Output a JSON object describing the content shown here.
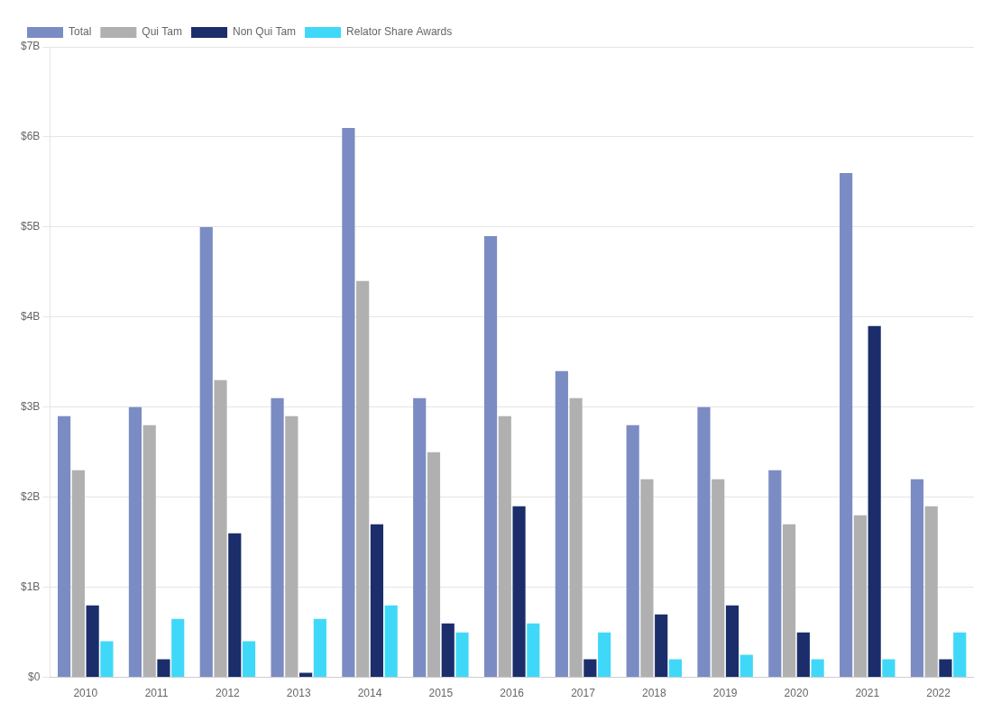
{
  "chart_data": {
    "type": "bar",
    "categories": [
      "2010",
      "2011",
      "2012",
      "2013",
      "2014",
      "2015",
      "2016",
      "2017",
      "2018",
      "2019",
      "2020",
      "2021",
      "2022"
    ],
    "series": [
      {
        "name": "Total",
        "color": "#7B8CC4",
        "values": [
          2.9,
          3.0,
          5.0,
          3.1,
          6.1,
          3.1,
          4.9,
          3.4,
          2.8,
          3.0,
          2.3,
          5.6,
          2.2
        ]
      },
      {
        "name": "Qui Tam",
        "color": "#B0B0B0",
        "values": [
          2.3,
          2.8,
          3.3,
          2.9,
          4.4,
          2.5,
          2.9,
          3.1,
          2.2,
          2.2,
          1.7,
          1.8,
          1.9
        ]
      },
      {
        "name": "Non Qui Tam",
        "color": "#1B2E6B",
        "values": [
          0.8,
          0.2,
          1.6,
          0.05,
          1.7,
          0.6,
          1.9,
          0.2,
          0.7,
          0.8,
          0.5,
          3.9,
          0.2
        ]
      },
      {
        "name": "Relator Share Awards",
        "color": "#40D8F8",
        "values": [
          0.4,
          0.65,
          0.4,
          0.65,
          0.8,
          0.5,
          0.6,
          0.5,
          0.2,
          0.25,
          0.2,
          0.2,
          0.5
        ]
      }
    ],
    "ylim": [
      0,
      7
    ],
    "yticks": [
      {
        "value": 0,
        "label": "$0"
      },
      {
        "value": 1,
        "label": "$1B"
      },
      {
        "value": 2,
        "label": "$2B"
      },
      {
        "value": 3,
        "label": "$3B"
      },
      {
        "value": 4,
        "label": "$4B"
      },
      {
        "value": 5,
        "label": "$5B"
      },
      {
        "value": 6,
        "label": "$6B"
      },
      {
        "value": 7,
        "label": "$7B"
      }
    ],
    "grid": true,
    "legend": "upper left"
  }
}
